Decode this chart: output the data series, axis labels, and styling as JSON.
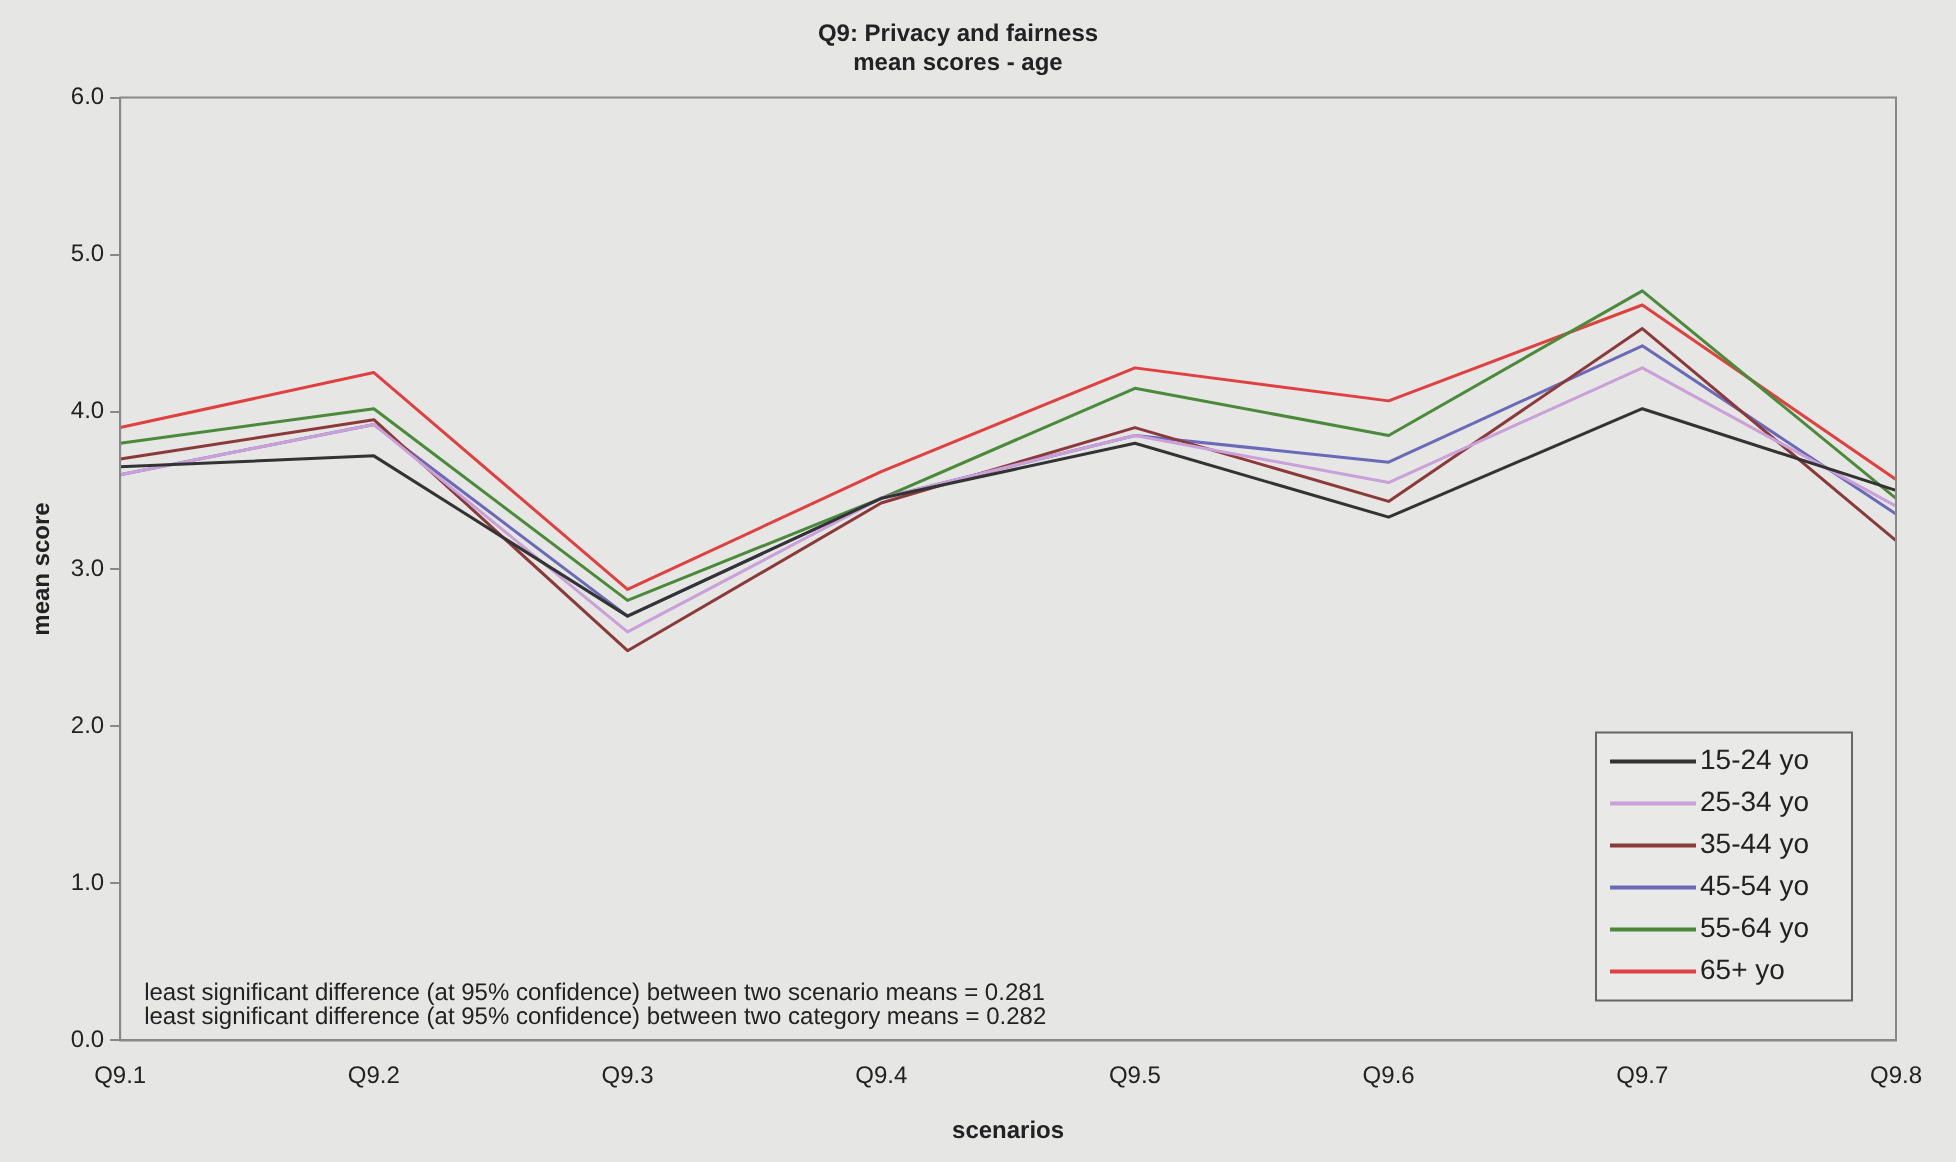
{
  "chart_data": {
    "type": "line",
    "title": "Q9: Privacy and fairness",
    "subtitle": "mean scores - age",
    "xlabel": "scenarios",
    "ylabel": "mean score",
    "categories": [
      "Q9.1",
      "Q9.2",
      "Q9.3",
      "Q9.4",
      "Q9.5",
      "Q9.6",
      "Q9.7",
      "Q9.8"
    ],
    "series": [
      {
        "name": "15-24 yo",
        "color": "#333333",
        "values": [
          3.65,
          3.72,
          2.7,
          3.45,
          3.8,
          3.33,
          4.02,
          3.5
        ]
      },
      {
        "name": "25-34 yo",
        "color": "#c9a0d8",
        "values": [
          3.6,
          3.92,
          2.6,
          3.45,
          3.85,
          3.55,
          4.28,
          3.4
        ]
      },
      {
        "name": "35-44 yo",
        "color": "#8b3a3a",
        "values": [
          3.7,
          3.95,
          2.48,
          3.42,
          3.9,
          3.43,
          4.53,
          3.18
        ]
      },
      {
        "name": "45-54 yo",
        "color": "#6a6ab8",
        "values": [
          3.6,
          3.92,
          2.7,
          3.45,
          3.85,
          3.68,
          4.42,
          3.35
        ]
      },
      {
        "name": "55-64 yo",
        "color": "#4a8a3a",
        "values": [
          3.8,
          4.02,
          2.8,
          3.45,
          4.15,
          3.85,
          4.77,
          3.45
        ]
      },
      {
        "name": "65+ yo",
        "color": "#e04040",
        "values": [
          3.9,
          4.25,
          2.87,
          3.62,
          4.28,
          4.07,
          4.68,
          3.57
        ]
      }
    ],
    "ylim": [
      0,
      6
    ],
    "yticks": [
      {
        "value": 0,
        "label": "0.0"
      },
      {
        "value": 1,
        "label": "1.0"
      },
      {
        "value": 2,
        "label": "2.0"
      },
      {
        "value": 3,
        "label": "3.0"
      },
      {
        "value": 4,
        "label": "4.0"
      },
      {
        "value": 5,
        "label": "5.0"
      },
      {
        "value": 6,
        "label": "6.0"
      }
    ],
    "annotations": [
      "least significant difference (at 95% confidence) between two scenario means = 0.281",
      "least significant difference (at 95% confidence) between two category means = 0.282"
    ],
    "legend": "bottom right",
    "marker": "none",
    "line_style": "solid",
    "grid": false
  }
}
